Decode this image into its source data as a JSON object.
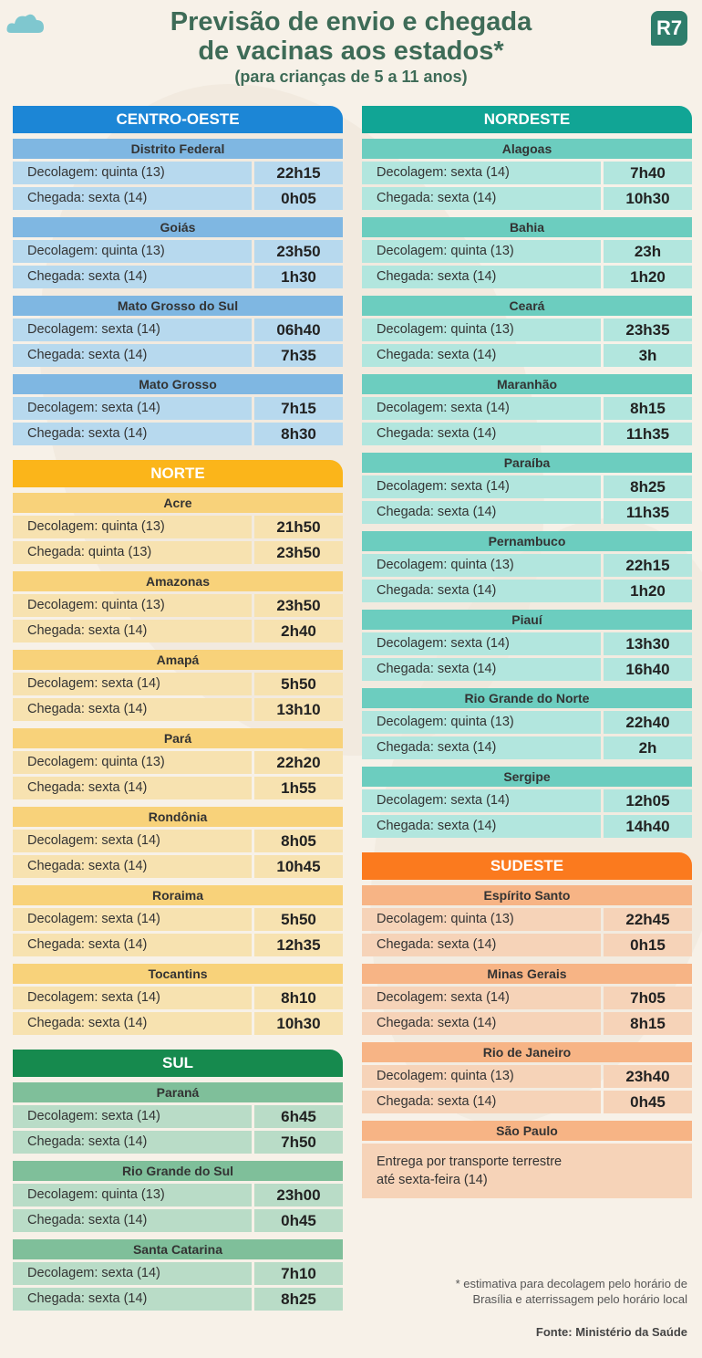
{
  "header": {
    "title_line1": "Previsão de envio e chegada",
    "title_line2": "de vacinas aos estados*",
    "subtitle": "(para crianças de 5 a 11 anos)",
    "logo": "R7"
  },
  "colors": {
    "centro_oeste": {
      "head": "#1c86d6",
      "state": "#7fb7e2",
      "cell": "#b7d9ee"
    },
    "nordeste": {
      "head": "#11a595",
      "state": "#6ccdbf",
      "cell": "#b2e6de"
    },
    "norte": {
      "head": "#fbb51a",
      "state": "#f8d27a",
      "cell": "#f7e2b0"
    },
    "sul": {
      "head": "#168a4e",
      "state": "#7fbf9a",
      "cell": "#b9dcc7"
    },
    "sudeste": {
      "head": "#fb7a1e",
      "state": "#f7b485",
      "cell": "#f6d3b8"
    }
  },
  "regions": {
    "centro_oeste": {
      "name": "CENTRO-OESTE",
      "states": [
        {
          "name": "Distrito Federal",
          "dep_label": "Decolagem: quinta (13)",
          "dep_time": "22h15",
          "arr_label": "Chegada: sexta (14)",
          "arr_time": "0h05"
        },
        {
          "name": "Goiás",
          "dep_label": "Decolagem: quinta (13)",
          "dep_time": "23h50",
          "arr_label": "Chegada: sexta (14)",
          "arr_time": "1h30"
        },
        {
          "name": "Mato Grosso do Sul",
          "dep_label": "Decolagem: sexta (14)",
          "dep_time": "06h40",
          "arr_label": "Chegada: sexta (14)",
          "arr_time": "7h35"
        },
        {
          "name": "Mato Grosso",
          "dep_label": "Decolagem: sexta (14)",
          "dep_time": "7h15",
          "arr_label": "Chegada: sexta (14)",
          "arr_time": "8h30"
        }
      ]
    },
    "norte": {
      "name": "NORTE",
      "states": [
        {
          "name": "Acre",
          "dep_label": "Decolagem: quinta (13)",
          "dep_time": "21h50",
          "arr_label": "Chegada: quinta (13)",
          "arr_time": "23h50"
        },
        {
          "name": "Amazonas",
          "dep_label": "Decolagem: quinta (13)",
          "dep_time": "23h50",
          "arr_label": "Chegada: sexta (14)",
          "arr_time": "2h40"
        },
        {
          "name": "Amapá",
          "dep_label": "Decolagem: sexta (14)",
          "dep_time": "5h50",
          "arr_label": "Chegada: sexta (14)",
          "arr_time": "13h10"
        },
        {
          "name": "Pará",
          "dep_label": "Decolagem: quinta (13)",
          "dep_time": "22h20",
          "arr_label": "Chegada: sexta (14)",
          "arr_time": "1h55"
        },
        {
          "name": "Rondônia",
          "dep_label": "Decolagem: sexta (14)",
          "dep_time": "8h05",
          "arr_label": "Chegada: sexta (14)",
          "arr_time": "10h45"
        },
        {
          "name": "Roraima",
          "dep_label": "Decolagem: sexta (14)",
          "dep_time": "5h50",
          "arr_label": "Chegada: sexta (14)",
          "arr_time": "12h35"
        },
        {
          "name": "Tocantins",
          "dep_label": "Decolagem: sexta (14)",
          "dep_time": "8h10",
          "arr_label": "Chegada: sexta (14)",
          "arr_time": "10h30"
        }
      ]
    },
    "sul": {
      "name": "SUL",
      "states": [
        {
          "name": "Paraná",
          "dep_label": "Decolagem: sexta (14)",
          "dep_time": "6h45",
          "arr_label": "Chegada: sexta (14)",
          "arr_time": "7h50"
        },
        {
          "name": "Rio Grande do Sul",
          "dep_label": "Decolagem: quinta (13)",
          "dep_time": "23h00",
          "arr_label": "Chegada: sexta (14)",
          "arr_time": "0h45"
        },
        {
          "name": "Santa Catarina",
          "dep_label": "Decolagem: sexta (14)",
          "dep_time": "7h10",
          "arr_label": "Chegada: sexta (14)",
          "arr_time": "8h25"
        }
      ]
    },
    "nordeste": {
      "name": "NORDESTE",
      "states": [
        {
          "name": "Alagoas",
          "dep_label": "Decolagem: sexta (14)",
          "dep_time": "7h40",
          "arr_label": "Chegada: sexta (14)",
          "arr_time": "10h30"
        },
        {
          "name": "Bahia",
          "dep_label": "Decolagem: quinta (13)",
          "dep_time": "23h",
          "arr_label": "Chegada: sexta (14)",
          "arr_time": "1h20"
        },
        {
          "name": "Ceará",
          "dep_label": "Decolagem: quinta (13)",
          "dep_time": "23h35",
          "arr_label": "Chegada: sexta (14)",
          "arr_time": "3h"
        },
        {
          "name": "Maranhão",
          "dep_label": "Decolagem: sexta (14)",
          "dep_time": "8h15",
          "arr_label": "Chegada: sexta (14)",
          "arr_time": "11h35"
        },
        {
          "name": "Paraíba",
          "dep_label": "Decolagem: sexta (14)",
          "dep_time": "8h25",
          "arr_label": "Chegada: sexta (14)",
          "arr_time": "11h35"
        },
        {
          "name": "Pernambuco",
          "dep_label": "Decolagem: quinta (13)",
          "dep_time": "22h15",
          "arr_label": "Chegada: sexta (14)",
          "arr_time": "1h20"
        },
        {
          "name": "Piauí",
          "dep_label": "Decolagem: sexta (14)",
          "dep_time": "13h30",
          "arr_label": "Chegada: sexta (14)",
          "arr_time": "16h40"
        },
        {
          "name": "Rio Grande do Norte",
          "dep_label": "Decolagem: quinta (13)",
          "dep_time": "22h40",
          "arr_label": "Chegada: sexta (14)",
          "arr_time": "2h"
        },
        {
          "name": "Sergipe",
          "dep_label": "Decolagem: sexta (14)",
          "dep_time": "12h05",
          "arr_label": "Chegada: sexta (14)",
          "arr_time": "14h40"
        }
      ]
    },
    "sudeste": {
      "name": "SUDESTE",
      "states": [
        {
          "name": "Espírito Santo",
          "dep_label": "Decolagem: quinta (13)",
          "dep_time": "22h45",
          "arr_label": "Chegada: sexta (14)",
          "arr_time": "0h15"
        },
        {
          "name": "Minas Gerais",
          "dep_label": "Decolagem: sexta (14)",
          "dep_time": "7h05",
          "arr_label": "Chegada: sexta (14)",
          "arr_time": "8h15"
        },
        {
          "name": "Rio de Janeiro",
          "dep_label": "Decolagem: quinta (13)",
          "dep_time": "23h40",
          "arr_label": "Chegada: sexta (14)",
          "arr_time": "0h45"
        }
      ],
      "sao_paulo": {
        "name": "São Paulo",
        "note_line1": "Entrega por transporte terrestre",
        "note_line2": "até sexta-feira (14)"
      }
    }
  },
  "footnote": {
    "line1": "* estimativa para decolagem pelo horário de",
    "line2": "Brasília e aterrissagem pelo horário local"
  },
  "source": "Fonte: Ministério da Saúde"
}
